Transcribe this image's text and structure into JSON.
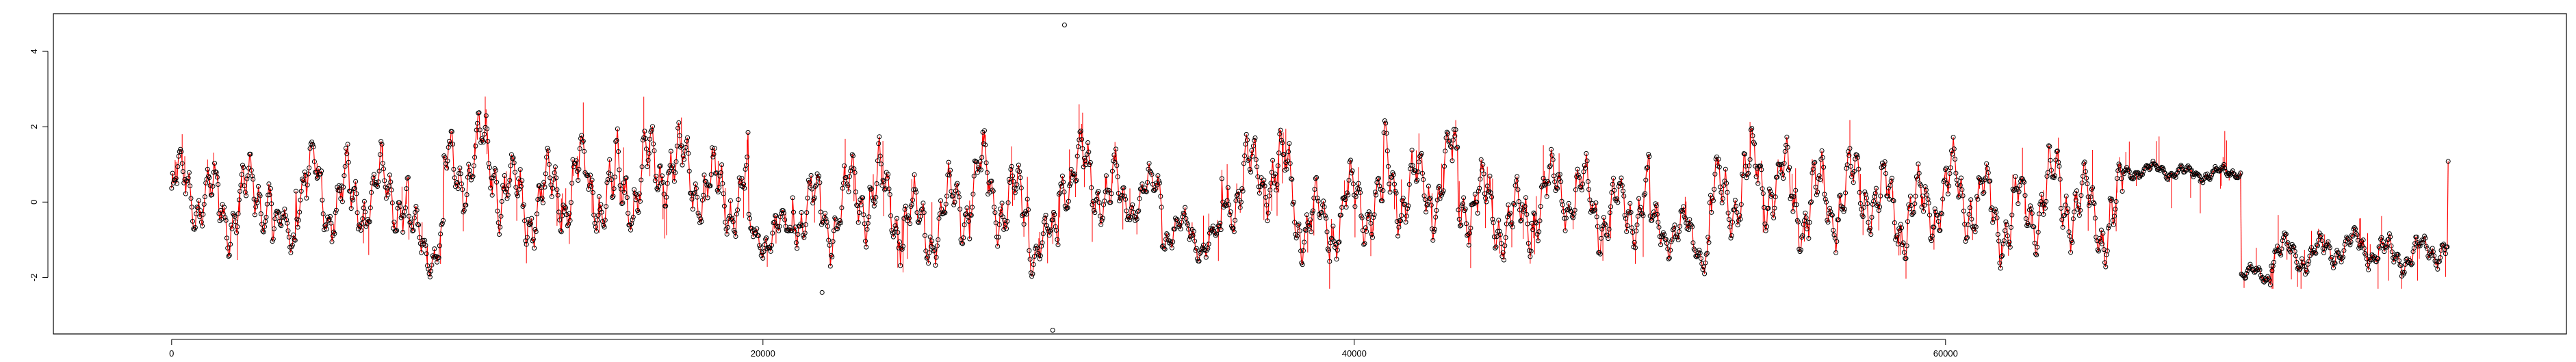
{
  "chart_data": {
    "type": "scatter",
    "title": "",
    "xlabel": "",
    "ylabel": "",
    "xlim": [
      -4000,
      81000
    ],
    "ylim": [
      -3.5,
      5.0
    ],
    "x_ticks": [
      0,
      20000,
      40000,
      60000
    ],
    "y_ticks": [
      -2,
      0,
      2,
      4
    ],
    "grid": false,
    "legend": "none",
    "colors": {
      "points": "#000000",
      "line": "#ff0000"
    },
    "n_observations": 77000,
    "segments": [
      {
        "x": [
          0,
          2000
        ],
        "mean": 0.0,
        "amp": 1.3
      },
      {
        "x": [
          2000,
          3400
        ],
        "mean": 0.3,
        "amp": 1.5
      },
      {
        "x": [
          3400,
          4200
        ],
        "mean": -1.0,
        "amp": 0.9
      },
      {
        "x": [
          4200,
          6000
        ],
        "mean": 0.5,
        "amp": 1.5
      },
      {
        "x": [
          6000,
          8000
        ],
        "mean": 0.0,
        "amp": 1.3
      },
      {
        "x": [
          8000,
          9200
        ],
        "mean": -0.9,
        "amp": 1.0
      },
      {
        "x": [
          9200,
          11000
        ],
        "mean": 0.8,
        "amp": 1.5
      },
      {
        "x": [
          11000,
          13000
        ],
        "mean": 0.3,
        "amp": 1.4
      },
      {
        "x": [
          13000,
          15000
        ],
        "mean": 0.2,
        "amp": 1.5
      },
      {
        "x": [
          15000,
          17000
        ],
        "mean": 0.8,
        "amp": 1.6
      },
      {
        "x": [
          17000,
          19500
        ],
        "mean": 0.5,
        "amp": 1.4
      },
      {
        "x": [
          19500,
          21000
        ],
        "mean": -1.0,
        "amp": 0.8
      },
      {
        "x": [
          21000,
          24000
        ],
        "mean": 0.0,
        "amp": 1.5
      },
      {
        "x": [
          24000,
          27000
        ],
        "mean": -0.3,
        "amp": 1.4
      },
      {
        "x": [
          27000,
          29000
        ],
        "mean": 0.2,
        "amp": 1.5
      },
      {
        "x": [
          29000,
          30000
        ],
        "mean": -1.0,
        "amp": 0.8
      },
      {
        "x": [
          30000,
          32000
        ],
        "mean": 0.5,
        "amp": 1.3
      },
      {
        "x": [
          32000,
          33500
        ],
        "mean": 0.2,
        "amp": 0.8
      },
      {
        "x": [
          33500,
          35500
        ],
        "mean": -0.9,
        "amp": 0.7
      },
      {
        "x": [
          35500,
          38000
        ],
        "mean": 0.5,
        "amp": 1.4
      },
      {
        "x": [
          38000,
          41000
        ],
        "mean": -0.3,
        "amp": 1.3
      },
      {
        "x": [
          41000,
          43500
        ],
        "mean": 0.6,
        "amp": 1.5
      },
      {
        "x": [
          43500,
          46000
        ],
        "mean": -0.2,
        "amp": 1.3
      },
      {
        "x": [
          46000,
          50000
        ],
        "mean": 0.0,
        "amp": 1.3
      },
      {
        "x": [
          50000,
          52000
        ],
        "mean": -0.9,
        "amp": 0.9
      },
      {
        "x": [
          52000,
          56000
        ],
        "mean": 0.3,
        "amp": 1.5
      },
      {
        "x": [
          56000,
          60000
        ],
        "mean": 0.0,
        "amp": 1.4
      },
      {
        "x": [
          60000,
          66000
        ],
        "mean": -0.1,
        "amp": 1.5
      },
      {
        "x": [
          66000,
          70000
        ],
        "mean": 0.8,
        "amp": 0.25
      },
      {
        "x": [
          70000,
          71000
        ],
        "mean": -2.0,
        "amp": 0.3
      },
      {
        "x": [
          71000,
          77000
        ],
        "mean": -1.3,
        "amp": 0.6
      },
      {
        "x": [
          77000,
          77500
        ],
        "mean": 1.0,
        "amp": 0.2
      }
    ],
    "outliers": [
      {
        "x": 30200,
        "y": 4.7
      },
      {
        "x": 29800,
        "y": -3.4
      },
      {
        "x": 22000,
        "y": -2.4
      }
    ]
  }
}
